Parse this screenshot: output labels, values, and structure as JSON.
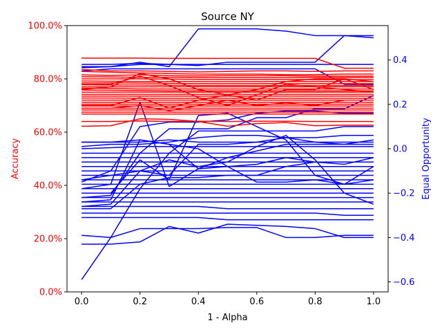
{
  "chart_data": {
    "type": "line",
    "title": "Source NY",
    "xlabel": "1 - Alpha",
    "ylabel_left": "Accuracy",
    "ylabel_right": "Equal Opportunity",
    "x": [
      0.0,
      0.1,
      0.2,
      0.3,
      0.4,
      0.5,
      0.6,
      0.7,
      0.8,
      0.9,
      1.0
    ],
    "xlim": [
      -0.05,
      1.05
    ],
    "ylim_left": [
      0.0,
      1.0
    ],
    "ylim_right": [
      -0.645,
      0.555
    ],
    "x_ticks": [
      {
        "v": 0.0,
        "label": "0.0"
      },
      {
        "v": 0.2,
        "label": "0.2"
      },
      {
        "v": 0.4,
        "label": "0.4"
      },
      {
        "v": 0.6,
        "label": "0.6"
      },
      {
        "v": 0.8,
        "label": "0.8"
      },
      {
        "v": 1.0,
        "label": "1.0"
      }
    ],
    "y_left_ticks": [
      {
        "v": 0.0,
        "label": "0.0%"
      },
      {
        "v": 0.2,
        "label": "20.0%"
      },
      {
        "v": 0.4,
        "label": "40.0%"
      },
      {
        "v": 0.6,
        "label": "60.0%"
      },
      {
        "v": 0.8,
        "label": "80.0%"
      },
      {
        "v": 1.0,
        "label": "100.0%"
      }
    ],
    "y_right_ticks": [
      {
        "v": -0.6,
        "label": "−0.6"
      },
      {
        "v": -0.4,
        "label": "−0.4"
      },
      {
        "v": -0.2,
        "label": "−0.2"
      },
      {
        "v": 0.0,
        "label": "0.0"
      },
      {
        "v": 0.2,
        "label": "0.2"
      },
      {
        "v": 0.4,
        "label": "0.4"
      }
    ],
    "colors": {
      "accuracy": "#ff0000",
      "equal_opportunity": "#0000ff",
      "text": "#000000"
    },
    "grid": false,
    "accuracy_series": [
      [
        0.878,
        0.878,
        0.878,
        0.877,
        0.877,
        0.877,
        0.877,
        0.877,
        0.877,
        0.84,
        0.84
      ],
      [
        0.835,
        0.83,
        0.83,
        0.828,
        0.826,
        0.828,
        0.83,
        0.83,
        0.828,
        0.83,
        0.83
      ],
      [
        0.828,
        0.825,
        0.822,
        0.82,
        0.818,
        0.818,
        0.818,
        0.816,
        0.816,
        0.818,
        0.818
      ],
      [
        0.815,
        0.813,
        0.815,
        0.812,
        0.811,
        0.812,
        0.812,
        0.812,
        0.81,
        0.81,
        0.81
      ],
      [
        0.808,
        0.807,
        0.806,
        0.806,
        0.805,
        0.805,
        0.805,
        0.805,
        0.805,
        0.805,
        0.805
      ],
      [
        0.8,
        0.8,
        0.8,
        0.799,
        0.798,
        0.798,
        0.798,
        0.798,
        0.797,
        0.797,
        0.797
      ],
      [
        0.792,
        0.791,
        0.79,
        0.79,
        0.79,
        0.79,
        0.79,
        0.79,
        0.79,
        0.79,
        0.79
      ],
      [
        0.785,
        0.785,
        0.784,
        0.783,
        0.782,
        0.782,
        0.782,
        0.782,
        0.782,
        0.782,
        0.782
      ],
      [
        0.778,
        0.777,
        0.777,
        0.776,
        0.775,
        0.775,
        0.775,
        0.775,
        0.775,
        0.775,
        0.775
      ],
      [
        0.77,
        0.77,
        0.77,
        0.77,
        0.77,
        0.77,
        0.77,
        0.77,
        0.77,
        0.77,
        0.77
      ],
      [
        0.765,
        0.764,
        0.762,
        0.762,
        0.762,
        0.762,
        0.762,
        0.762,
        0.762,
        0.762,
        0.762
      ],
      [
        0.758,
        0.757,
        0.756,
        0.755,
        0.755,
        0.755,
        0.755,
        0.755,
        0.755,
        0.755,
        0.755
      ],
      [
        0.75,
        0.75,
        0.75,
        0.75,
        0.75,
        0.75,
        0.75,
        0.75,
        0.75,
        0.75,
        0.75
      ],
      [
        0.742,
        0.742,
        0.742,
        0.742,
        0.742,
        0.742,
        0.742,
        0.742,
        0.742,
        0.742,
        0.742
      ],
      [
        0.735,
        0.735,
        0.735,
        0.735,
        0.735,
        0.735,
        0.735,
        0.735,
        0.735,
        0.735,
        0.735
      ],
      [
        0.728,
        0.728,
        0.727,
        0.727,
        0.727,
        0.727,
        0.727,
        0.727,
        0.727,
        0.727,
        0.727
      ],
      [
        0.72,
        0.72,
        0.72,
        0.72,
        0.72,
        0.72,
        0.72,
        0.72,
        0.72,
        0.72,
        0.72
      ],
      [
        0.712,
        0.712,
        0.712,
        0.712,
        0.712,
        0.712,
        0.712,
        0.712,
        0.712,
        0.712,
        0.712
      ],
      [
        0.705,
        0.705,
        0.705,
        0.705,
        0.705,
        0.705,
        0.705,
        0.705,
        0.705,
        0.705,
        0.705
      ],
      [
        0.698,
        0.698,
        0.698,
        0.698,
        0.698,
        0.698,
        0.698,
        0.698,
        0.698,
        0.698,
        0.698
      ],
      [
        0.69,
        0.69,
        0.69,
        0.69,
        0.69,
        0.69,
        0.69,
        0.69,
        0.69,
        0.69,
        0.69
      ],
      [
        0.683,
        0.683,
        0.683,
        0.683,
        0.683,
        0.683,
        0.683,
        0.683,
        0.683,
        0.683,
        0.683
      ],
      [
        0.675,
        0.675,
        0.675,
        0.675,
        0.675,
        0.675,
        0.675,
        0.675,
        0.675,
        0.675,
        0.675
      ],
      [
        0.668,
        0.668,
        0.668,
        0.668,
        0.668,
        0.668,
        0.668,
        0.668,
        0.668,
        0.668,
        0.668
      ],
      [
        0.78,
        0.78,
        0.81,
        0.775,
        0.73,
        0.7,
        0.74,
        0.78,
        0.77,
        0.76,
        0.75
      ],
      [
        0.76,
        0.77,
        0.82,
        0.8,
        0.76,
        0.74,
        0.72,
        0.76,
        0.76,
        0.8,
        0.76
      ],
      [
        0.7,
        0.7,
        0.73,
        0.69,
        0.72,
        0.74,
        0.76,
        0.79,
        0.8,
        0.8,
        0.79
      ],
      [
        0.69,
        0.69,
        0.7,
        0.68,
        0.7,
        0.72,
        0.7,
        0.71,
        0.7,
        0.72,
        0.72
      ],
      [
        0.64,
        0.64,
        0.642,
        0.64,
        0.641,
        0.64,
        0.641,
        0.641,
        0.64,
        0.64,
        0.64
      ],
      [
        0.622,
        0.624,
        0.65,
        0.648,
        0.64,
        0.622,
        0.632,
        0.636,
        0.624,
        0.626,
        0.626
      ]
    ],
    "equal_opportunity_series": [
      [
        0.38,
        0.38,
        0.385,
        0.38,
        0.375,
        0.39,
        0.39,
        0.39,
        0.39,
        0.51,
        0.51
      ],
      [
        0.37,
        0.37,
        0.39,
        0.37,
        0.54,
        0.54,
        0.54,
        0.53,
        0.51,
        0.51,
        0.5
      ],
      [
        0.365,
        0.37,
        0.38,
        0.38,
        0.38,
        0.38,
        0.38,
        0.38,
        0.38,
        0.38,
        0.38
      ],
      [
        0.35,
        0.36,
        0.36,
        0.36,
        0.36,
        0.36,
        0.36,
        0.36,
        0.36,
        0.29,
        0.29
      ],
      [
        0.03,
        0.03,
        0.03,
        0.04,
        0.03,
        0.03,
        0.03,
        0.03,
        0.03,
        0.03,
        0.03
      ],
      [
        0.01,
        0.02,
        0.02,
        0.03,
        0.05,
        0.06,
        0.06,
        0.05,
        0.03,
        0.02,
        0.02
      ],
      [
        0.0,
        0.005,
        0.01,
        0.01,
        0.01,
        0.01,
        0.01,
        0.01,
        0.01,
        0.01,
        0.01
      ],
      [
        -0.02,
        -0.02,
        -0.02,
        -0.02,
        -0.02,
        -0.02,
        -0.02,
        -0.02,
        -0.02,
        -0.02,
        -0.02
      ],
      [
        -0.04,
        -0.04,
        -0.04,
        -0.04,
        -0.04,
        -0.04,
        -0.04,
        -0.04,
        -0.04,
        -0.04,
        -0.04
      ],
      [
        -0.06,
        -0.06,
        -0.06,
        -0.06,
        -0.06,
        -0.06,
        -0.06,
        -0.06,
        -0.06,
        -0.06,
        -0.06
      ],
      [
        -0.08,
        -0.08,
        -0.08,
        -0.08,
        -0.08,
        -0.08,
        -0.08,
        -0.08,
        -0.08,
        -0.08,
        -0.08
      ],
      [
        -0.1,
        -0.1,
        -0.1,
        -0.1,
        -0.1,
        -0.1,
        -0.1,
        -0.1,
        -0.1,
        -0.1,
        -0.1
      ],
      [
        -0.12,
        -0.12,
        -0.12,
        -0.12,
        -0.12,
        -0.12,
        -0.12,
        -0.12,
        -0.12,
        -0.12,
        -0.12
      ],
      [
        -0.14,
        -0.14,
        -0.14,
        -0.14,
        -0.14,
        -0.14,
        -0.14,
        -0.14,
        -0.14,
        -0.14,
        -0.14
      ],
      [
        -0.16,
        -0.16,
        -0.16,
        -0.16,
        -0.16,
        -0.16,
        -0.16,
        -0.16,
        -0.16,
        -0.16,
        -0.16
      ],
      [
        -0.18,
        -0.18,
        -0.18,
        -0.18,
        -0.18,
        -0.18,
        -0.18,
        -0.18,
        -0.18,
        -0.18,
        -0.18
      ],
      [
        -0.2,
        -0.2,
        -0.2,
        -0.2,
        -0.2,
        -0.2,
        -0.2,
        -0.2,
        -0.2,
        -0.2,
        -0.2
      ],
      [
        -0.22,
        -0.22,
        -0.22,
        -0.22,
        -0.22,
        -0.22,
        -0.22,
        -0.22,
        -0.22,
        -0.22,
        -0.22
      ],
      [
        -0.24,
        -0.24,
        -0.24,
        -0.24,
        -0.24,
        -0.24,
        -0.24,
        -0.24,
        -0.24,
        -0.24,
        -0.24
      ],
      [
        -0.26,
        -0.26,
        -0.26,
        -0.26,
        -0.26,
        -0.27,
        -0.27,
        -0.27,
        -0.27,
        -0.27,
        -0.27
      ],
      [
        -0.29,
        -0.29,
        -0.29,
        -0.29,
        -0.29,
        -0.29,
        -0.29,
        -0.29,
        -0.29,
        -0.3,
        -0.3
      ],
      [
        -0.31,
        -0.31,
        -0.31,
        -0.31,
        -0.31,
        -0.32,
        -0.32,
        -0.32,
        -0.32,
        -0.32,
        -0.32
      ],
      [
        -0.39,
        -0.4,
        -0.36,
        -0.36,
        -0.36,
        -0.355,
        -0.355,
        -0.4,
        -0.4,
        -0.39,
        -0.39
      ],
      [
        -0.43,
        -0.43,
        -0.42,
        -0.35,
        -0.38,
        -0.34,
        -0.345,
        -0.35,
        -0.36,
        -0.4,
        -0.4
      ],
      [
        -0.59,
        -0.4,
        -0.18,
        -0.02,
        0.08,
        0.08,
        0.08,
        0.08,
        0.08,
        0.1,
        0.1
      ],
      [
        -0.18,
        -0.16,
        0.21,
        -0.17,
        -0.09,
        -0.04,
        -0.01,
        0.02,
        0.02,
        0.02,
        0.04
      ],
      [
        -0.15,
        -0.1,
        0.1,
        0.12,
        0.12,
        0.13,
        0.16,
        0.17,
        0.17,
        0.16,
        0.16
      ],
      [
        -0.2,
        -0.2,
        -0.05,
        -0.14,
        0.15,
        0.16,
        0.1,
        0.04,
        -0.12,
        -0.16,
        -0.08
      ],
      [
        -0.22,
        -0.21,
        -0.02,
        0.09,
        0.09,
        0.09,
        0.14,
        0.14,
        0.18,
        0.18,
        0.24
      ],
      [
        -0.24,
        -0.23,
        0.04,
        0.02,
        0.0,
        -0.08,
        -0.15,
        -0.15,
        -0.14,
        -0.16,
        -0.14
      ],
      [
        -0.26,
        -0.25,
        -0.1,
        -0.05,
        -0.08,
        -0.06,
        0.01,
        0.06,
        -0.05,
        -0.2,
        -0.25
      ],
      [
        -0.27,
        -0.27,
        -0.16,
        -0.13,
        -0.13,
        -0.12,
        -0.12,
        -0.08,
        -0.06,
        -0.07,
        -0.04
      ],
      [
        -0.14,
        -0.12,
        -0.1,
        -0.12,
        0.02,
        0.02,
        0.03,
        0.05,
        0.05,
        0.06,
        0.06
      ],
      [
        0.03,
        0.03,
        0.04,
        0.02,
        -0.09,
        -0.08,
        -0.07,
        -0.04,
        -0.06,
        -0.06,
        -0.06
      ]
    ]
  }
}
